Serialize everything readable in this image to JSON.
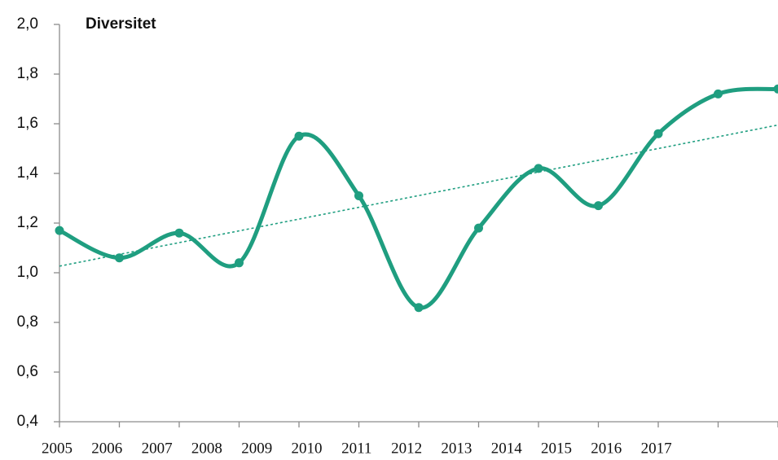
{
  "chart_data": {
    "type": "line",
    "title": "Diversitet",
    "categories": [
      "2005",
      "2006",
      "2007",
      "2008",
      "2009",
      "2010",
      "2011",
      "2012",
      "2013",
      "2014",
      "2015",
      "2016",
      "2017"
    ],
    "series": [
      {
        "color": "#1f9e80",
        "values": [
          1.17,
          1.06,
          1.16,
          1.04,
          1.55,
          1.31,
          0.86,
          1.18,
          1.42,
          1.27,
          1.56,
          1.72,
          1.74
        ]
      }
    ],
    "ylim": [
      0.4,
      2.0
    ],
    "yticks": [
      {
        "value": 0.4,
        "label": "0,4"
      },
      {
        "value": 0.6,
        "label": "0,6"
      },
      {
        "value": 0.8,
        "label": "0,8"
      },
      {
        "value": 1.0,
        "label": "1,0"
      },
      {
        "value": 1.2,
        "label": "1,2"
      },
      {
        "value": 1.4,
        "label": "1,4"
      },
      {
        "value": 1.6,
        "label": "1,6"
      },
      {
        "value": 1.8,
        "label": "1,8"
      },
      {
        "value": 2.0,
        "label": "2,0"
      }
    ],
    "smooth": true,
    "trendline": true
  }
}
